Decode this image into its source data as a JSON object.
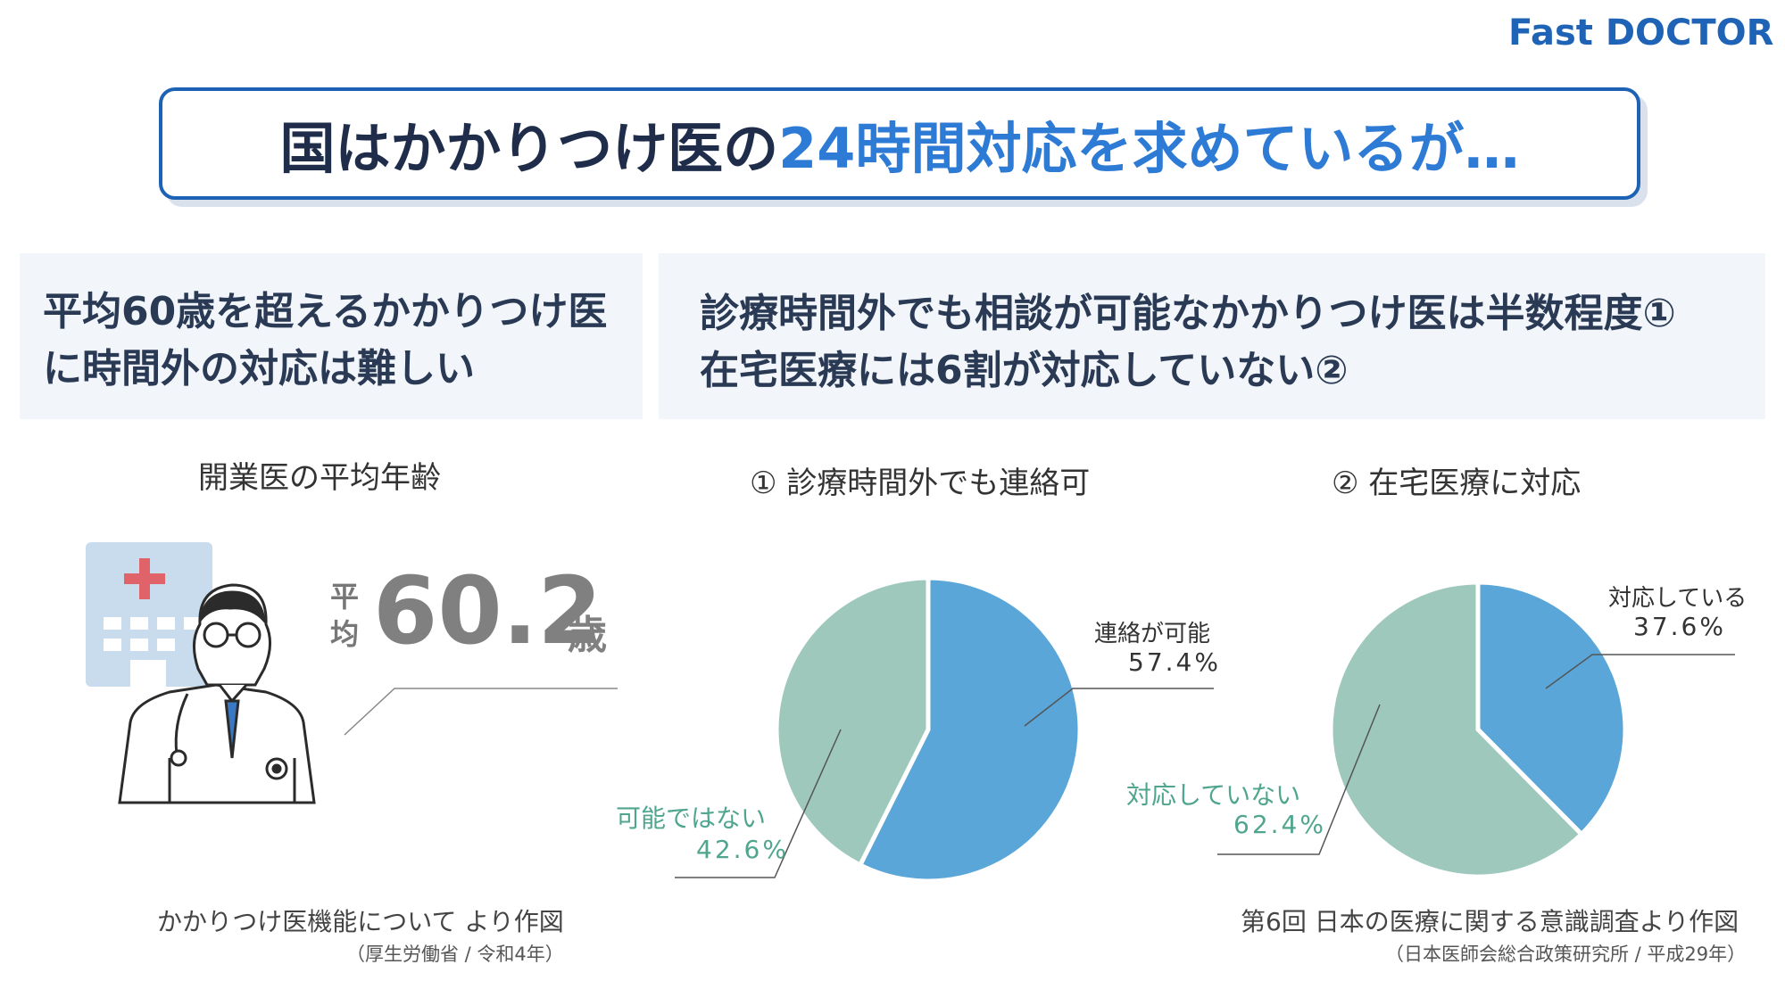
{
  "brand": "Fast DOCTOR",
  "title": {
    "part1": "国はかかりつけ医の",
    "part2": "24時間対応を求めているが…"
  },
  "left_panel": {
    "line1": "平均60歳を超えるかかりつけ医",
    "line2": "に時間外の対応は難しい"
  },
  "right_panel": {
    "line1": "診療時間外でも相談が可能なかかりつけ医は半数程度①",
    "line2": "在宅医療には6割が対応していない②"
  },
  "avg_age": {
    "heading": "開業医の平均年齢",
    "label": "平均",
    "value": "60.2",
    "unit": "歳"
  },
  "sources": {
    "left_main": "かかりつけ医機能について より作図",
    "left_sub": "（厚生労働省 / 令和4年）",
    "right_main": "第6回 日本の医療に関する意識調査より作図",
    "right_sub": "（日本医師会総合政策研究所 / 平成29年）"
  },
  "colors": {
    "blue": "#5aa6d8",
    "teal": "#9ec8bc",
    "accent": "#2e7bd6",
    "brand": "#1e63b6"
  },
  "chart_data": [
    {
      "type": "pie",
      "title": "① 診療時間外でも連絡可",
      "slices": [
        {
          "label": "連絡が可能",
          "value": 57.4,
          "display": "57.4%"
        },
        {
          "label": "可能ではない",
          "value": 42.6,
          "display": "42.6%"
        }
      ]
    },
    {
      "type": "pie",
      "title": "② 在宅医療に対応",
      "slices": [
        {
          "label": "対応している",
          "value": 37.6,
          "display": "37.6%"
        },
        {
          "label": "対応していない",
          "value": 62.4,
          "display": "62.4%"
        }
      ]
    }
  ]
}
